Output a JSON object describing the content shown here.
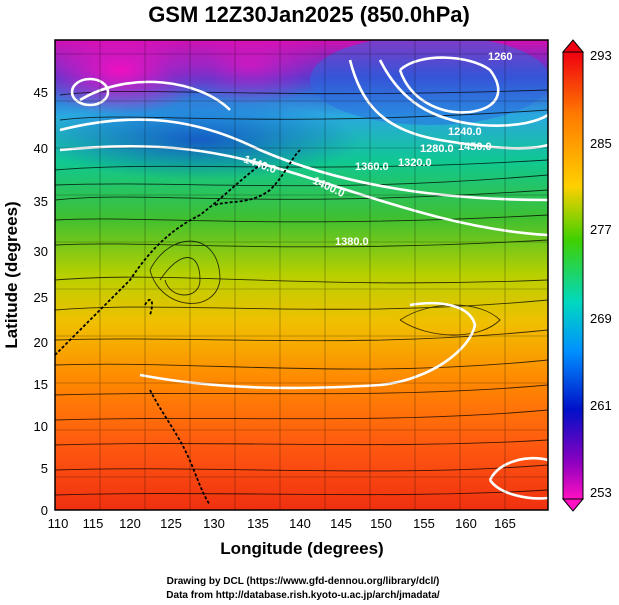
{
  "title": "GSM 12Z30Jan2025 (850.0hPa)",
  "xlabel": "Longitude (degrees)",
  "ylabel": "Latitude (degrees)",
  "x_ticks": [
    "110",
    "115",
    "120",
    "125",
    "130",
    "135",
    "140",
    "145",
    "150",
    "155",
    "160",
    "165"
  ],
  "y_ticks": [
    "0",
    "5",
    "10",
    "15",
    "20",
    "25",
    "30",
    "35",
    "40",
    "45"
  ],
  "colorbar": {
    "ticks": [
      "293",
      "285",
      "277",
      "269",
      "261",
      "253"
    ],
    "min": 253,
    "max": 293
  },
  "contour_labels": [
    "1260",
    "1440.0",
    "1400.0",
    "1360.0",
    "1320.0",
    "1280.0",
    "1380.0",
    "1240.0",
    "1450.0"
  ],
  "credits": {
    "line1": "Drawing by DCL (https://www.gfd-dennou.org/library/dcl/)",
    "line2": "Data from http://database.rish.kyoto-u.ac.jp/arch/jmadata/"
  },
  "colors": {
    "colorbar_stops": [
      "#f00010",
      "#ff7a00",
      "#ffd000",
      "#40d000",
      "#00d8c0",
      "#0090ff",
      "#0010c8",
      "#9000c0",
      "#ff10c0"
    ]
  }
}
